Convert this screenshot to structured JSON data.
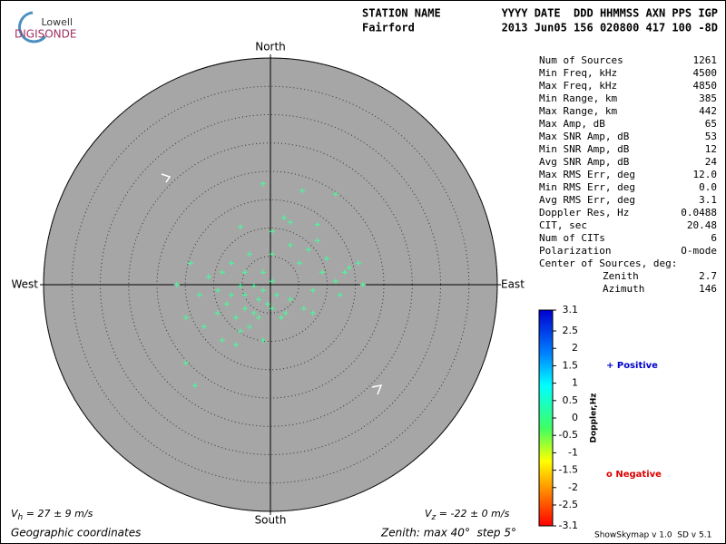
{
  "logo": {
    "top": "Lowell",
    "bottom": "DIGISONDE"
  },
  "header": {
    "station_label": "STATION NAME",
    "columns_label": "YYYY DATE  DDD HHMMSS AXN PPS IGP",
    "station": "Fairford",
    "values": "2013 Jun05 156 020800 417 100 -8D"
  },
  "chart_data": {
    "type": "scatter",
    "directions": {
      "north": "North",
      "south": "South",
      "west": "West",
      "east": "East"
    },
    "rlim": [
      0,
      40
    ],
    "rticks": [
      5,
      10,
      15,
      20,
      25,
      30,
      35,
      40
    ],
    "color": "#44ff99",
    "x": [
      -1.3,
      5.6,
      11.5,
      0.3,
      2.4,
      -5.3,
      8.3,
      15.5,
      16.3,
      -16.5,
      -13.3,
      -14.9,
      -14.1,
      -9.3,
      -4.5,
      -2.1,
      -0.5,
      -2.9,
      -6.1,
      0.3,
      3.5,
      7.5,
      11.5,
      13.1,
      5.1,
      -6.9,
      -10.9,
      -7.7,
      -3.7,
      -1.3,
      -6.1,
      -11.7,
      -14.9,
      1.9,
      -1.3,
      -3.7,
      0.3,
      3.5,
      6.7,
      9.9,
      9.1,
      7.5,
      5.9,
      2.7,
      -5.3,
      -8.5,
      -9.3,
      -12.5,
      -8.5,
      -4.5,
      -2.9,
      -5.3,
      -1.3,
      1.1,
      0.3,
      -2.1,
      -4.5,
      -6.9,
      12.3,
      13.9,
      8.3,
      3.5
    ],
    "y": [
      17.8,
      16.6,
      16.0,
      9.4,
      11.8,
      10.2,
      7.8,
      3.8,
      0.0,
      0.0,
      -17.8,
      -13.8,
      3.8,
      -1.0,
      -1.8,
      -2.6,
      -3.4,
      -5.0,
      -5.8,
      0.6,
      -2.6,
      -5.0,
      0.6,
      2.2,
      3.8,
      3.8,
      1.4,
      -3.4,
      -7.4,
      -9.8,
      -10.6,
      -7.4,
      -5.8,
      -5.8,
      2.2,
      5.4,
      5.4,
      7.0,
      6.2,
      4.6,
      2.2,
      -1.0,
      -4.2,
      -5.0,
      -8.2,
      -9.8,
      -5.0,
      -1.8,
      2.2,
      2.2,
      -0.2,
      -0.2,
      -1.0,
      -1.8,
      -4.2,
      -5.8,
      -4.2,
      -1.8,
      -1.8,
      3.0,
      10.6,
      11.0
    ],
    "vh": {
      "symbol": "V",
      "sub": "h",
      "text": " = 27 ± 9 m/s"
    },
    "vz": {
      "symbol": "V",
      "sub": "z",
      "text": " = -22 ± 0 m/s"
    },
    "coords": "Geographic coordinates",
    "zenith": "Zenith: max 40°  step 5°"
  },
  "stats": [
    [
      "Num of Sources",
      "1261"
    ],
    [
      "Min Freq, kHz",
      "4500"
    ],
    [
      "Max Freq, kHz",
      "4850"
    ],
    [
      "Min Range, km",
      "385"
    ],
    [
      "Max Range, km",
      "442"
    ],
    [
      "Max Amp, dB",
      "65"
    ],
    [
      "Max SNR Amp, dB",
      "53"
    ],
    [
      "Min SNR Amp, dB",
      "12"
    ],
    [
      "Avg SNR Amp, dB",
      "24"
    ],
    [
      "Max RMS Err, deg",
      "12.0"
    ],
    [
      "Min RMS Err, deg",
      "0.0"
    ],
    [
      "Avg RMS Err, deg",
      "3.1"
    ],
    [
      "Doppler Res, Hz",
      "0.0488"
    ],
    [
      "CIT, sec",
      "20.48"
    ],
    [
      "Num of CITs",
      "6"
    ],
    [
      "Polarization",
      "O-mode"
    ]
  ],
  "center": {
    "label": "Center of Sources, deg:",
    "rows": [
      [
        "Zenith",
        "2.7"
      ],
      [
        "Azimuth",
        "146"
      ]
    ]
  },
  "colorbar": {
    "label": "Doppler,Hz",
    "range": [
      -3.1,
      3.1
    ],
    "ticks": [
      3.1,
      2.5,
      2,
      1.5,
      1,
      0.5,
      0,
      -0.5,
      -1,
      -1.5,
      -2,
      -2.5,
      -3.1
    ],
    "positive": "+ Positive",
    "negative": "o Negative"
  },
  "footer": "ShowSkymap v 1.0  SD v 5.1"
}
